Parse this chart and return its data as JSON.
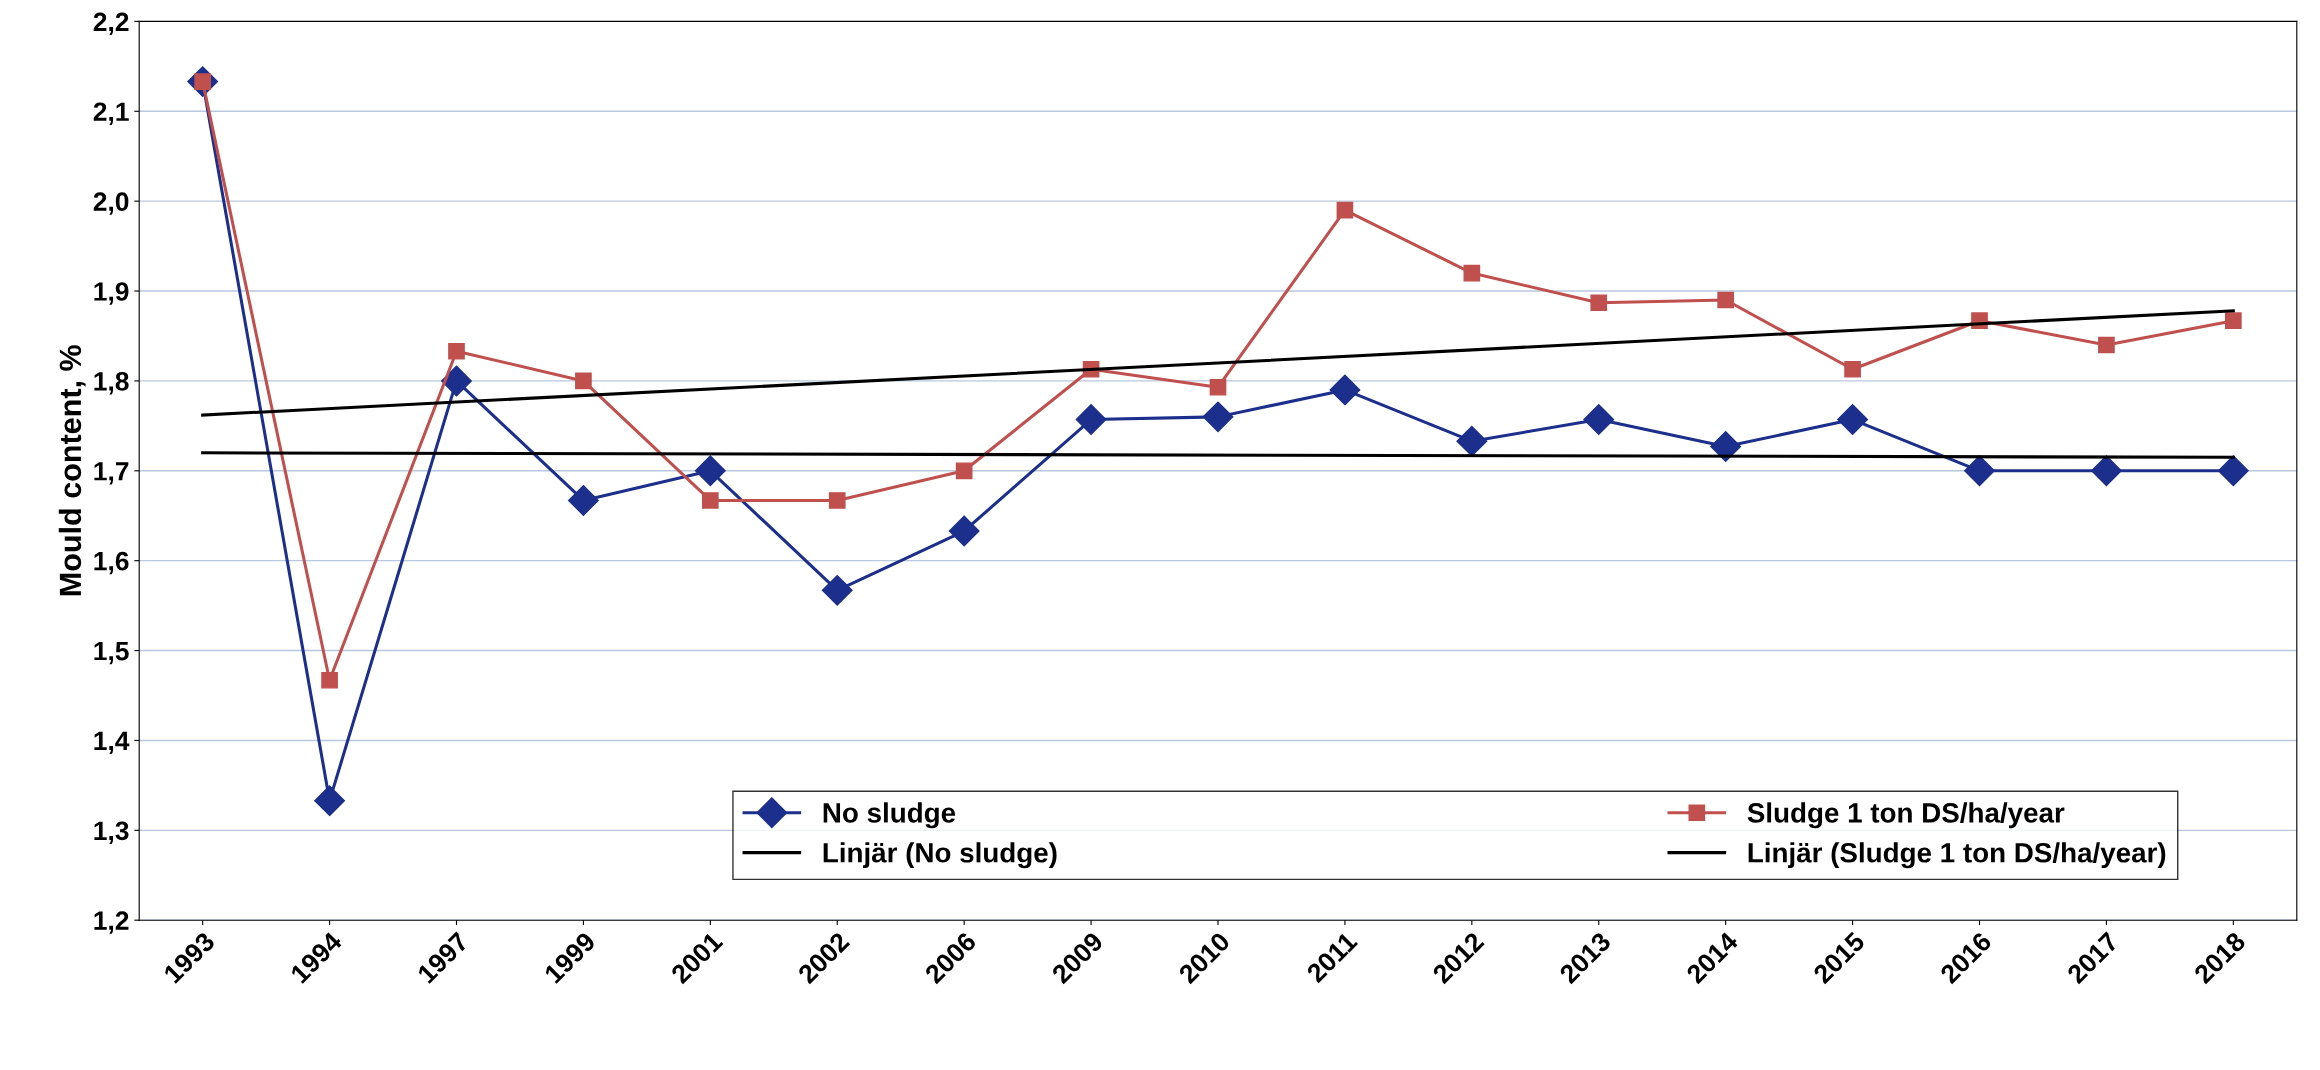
{
  "chart_data": {
    "type": "line",
    "ylabel": "Mould content, %",
    "categories": [
      "1993",
      "1994",
      "1997",
      "1999",
      "2001",
      "2002",
      "2006",
      "2009",
      "2010",
      "2011",
      "2012",
      "2013",
      "2014",
      "2015",
      "2016",
      "2017",
      "2018"
    ],
    "series": [
      {
        "name": "No sludge",
        "color": "#1c2f8c",
        "marker": "diamond",
        "values": [
          2.133,
          1.333,
          1.8,
          1.667,
          1.7,
          1.567,
          1.633,
          1.757,
          1.76,
          1.79,
          1.733,
          1.757,
          1.727,
          1.757,
          1.7,
          1.7,
          1.7
        ]
      },
      {
        "name": "Sludge 1 ton DS/ha/year",
        "color": "#c0504d",
        "marker": "square",
        "values": [
          2.133,
          1.467,
          1.833,
          1.8,
          1.667,
          1.667,
          1.7,
          1.813,
          1.793,
          1.99,
          1.92,
          1.887,
          1.89,
          1.813,
          1.867,
          1.84,
          1.867
        ]
      },
      {
        "name": "Linjär (No sludge)",
        "color": "#000000",
        "marker": "none",
        "values": [
          1.72,
          null,
          null,
          null,
          null,
          null,
          null,
          null,
          null,
          null,
          null,
          null,
          null,
          null,
          null,
          null,
          1.715
        ]
      },
      {
        "name": "Linjär (Sludge 1 ton DS/ha/year)",
        "color": "#000000",
        "marker": "none",
        "values": [
          1.762,
          null,
          null,
          null,
          null,
          null,
          null,
          null,
          null,
          null,
          null,
          null,
          null,
          null,
          null,
          null,
          1.878
        ]
      }
    ],
    "ylim": [
      1.2,
      2.2
    ],
    "yticks": [
      {
        "value": 1.2,
        "label": "1,2"
      },
      {
        "value": 1.3,
        "label": "1,3"
      },
      {
        "value": 1.4,
        "label": "1,4"
      },
      {
        "value": 1.5,
        "label": "1,5"
      },
      {
        "value": 1.6,
        "label": "1,6"
      },
      {
        "value": 1.7,
        "label": "1,7"
      },
      {
        "value": 1.8,
        "label": "1,8"
      },
      {
        "value": 1.9,
        "label": "1,9"
      },
      {
        "value": 2.0,
        "label": "2,0"
      },
      {
        "value": 2.1,
        "label": "2,1"
      },
      {
        "value": 2.2,
        "label": "2,2"
      }
    ],
    "grid": "y",
    "legend": "bottom",
    "line_style": "solid"
  }
}
